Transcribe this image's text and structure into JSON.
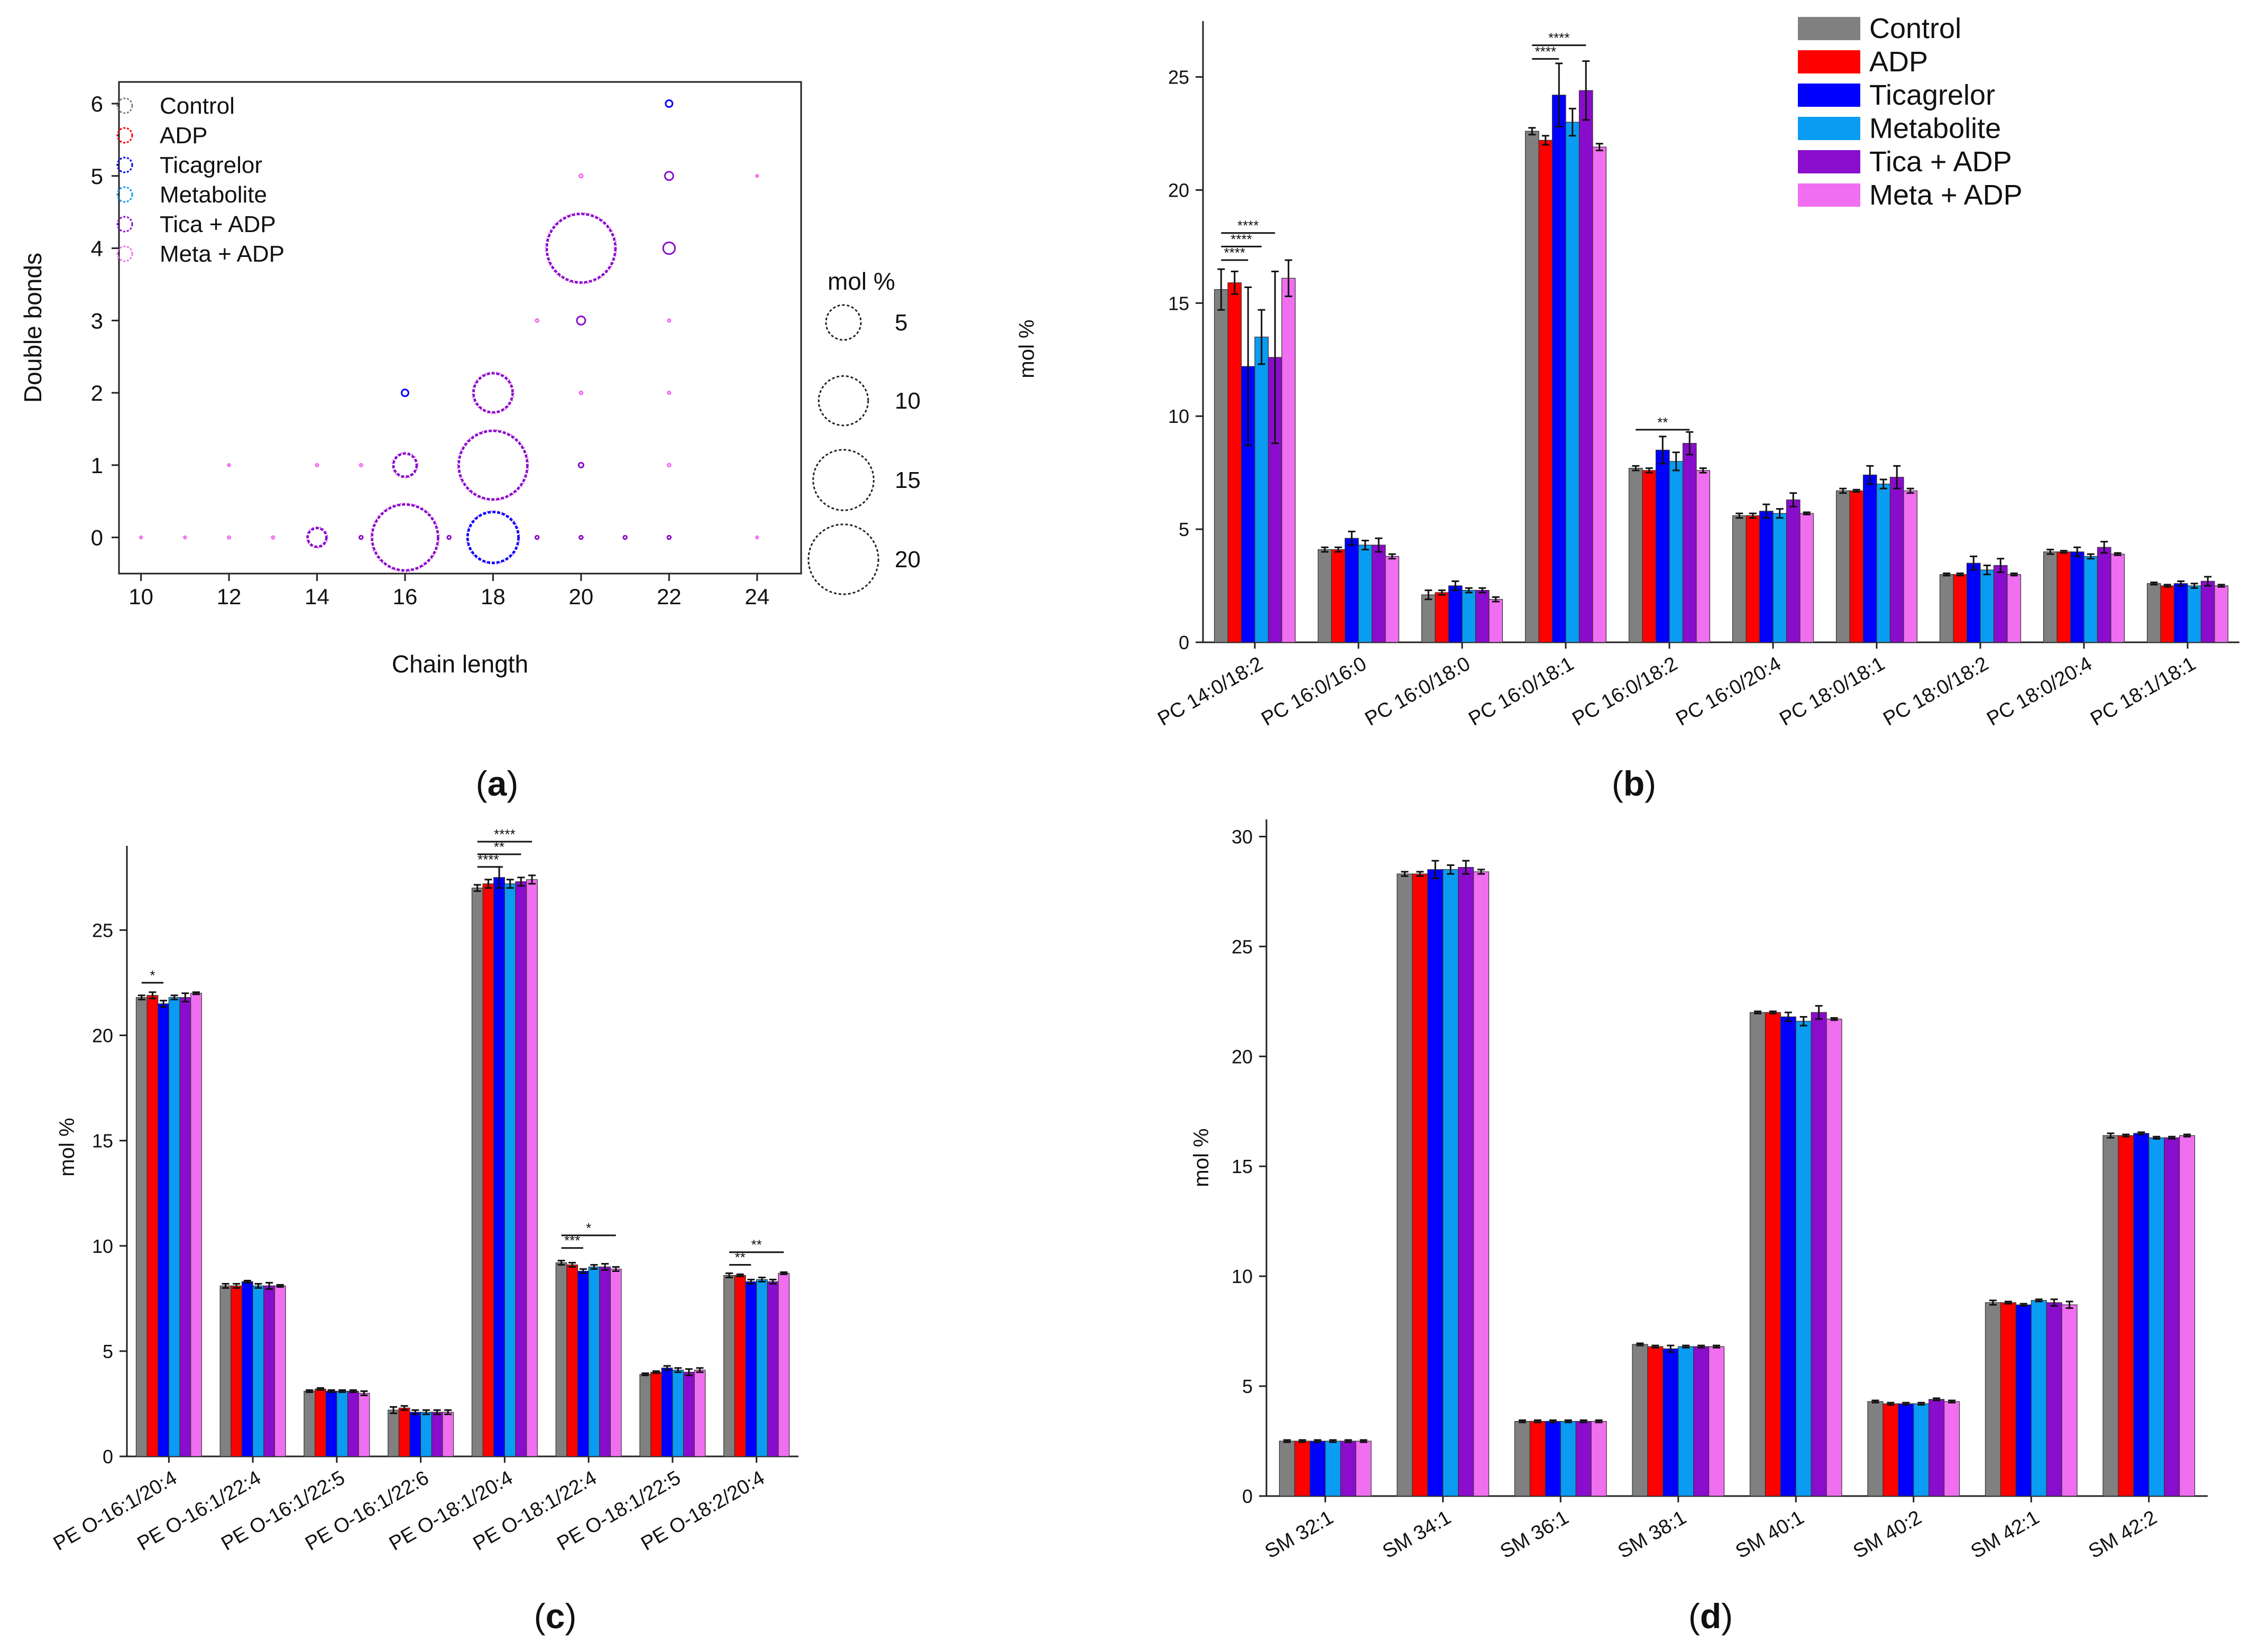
{
  "figure": {
    "series_names": [
      "Control",
      "ADP",
      "Ticagrelor",
      "Metabolite",
      "Tica + ADP",
      "Meta + ADP"
    ],
    "series_colors": [
      "#808080",
      "#ff0000",
      "#0000ff",
      "#0a9cf2",
      "#8a0ccc",
      "#f06ef0"
    ],
    "panel_letters": [
      "a",
      "b",
      "c",
      "d"
    ]
  },
  "chart_data": [
    {
      "id": "a",
      "type": "scatter",
      "subtype": "bubble",
      "xlabel": "Chain length",
      "ylabel": "Double bonds",
      "xlim": [
        9.5,
        25
      ],
      "ylim": [
        -0.5,
        6.3
      ],
      "xticks": [
        10,
        12,
        14,
        16,
        18,
        20,
        22,
        24
      ],
      "yticks": [
        0,
        1,
        2,
        3,
        4,
        5,
        6
      ],
      "grid": false,
      "legend": "top-left",
      "size_legend": {
        "title": "mol %",
        "values": [
          5,
          10,
          15,
          20
        ]
      },
      "points": [
        {
          "x": 14,
          "y": 0,
          "value": 1.5,
          "series": "Tica + ADP"
        },
        {
          "x": 16,
          "y": 0,
          "value": 18.5,
          "series": "Tica + ADP"
        },
        {
          "x": 18,
          "y": 0,
          "value": 11,
          "series": "Ticagrelor"
        },
        {
          "x": 16,
          "y": 1,
          "value": 2.3,
          "series": "Tica + ADP"
        },
        {
          "x": 18,
          "y": 1,
          "value": 20,
          "series": "Tica + ADP"
        },
        {
          "x": 16,
          "y": 2,
          "value": 0.2,
          "series": "Ticagrelor"
        },
        {
          "x": 18,
          "y": 2,
          "value": 6.5,
          "series": "Tica + ADP"
        },
        {
          "x": 20,
          "y": 3,
          "value": 0.3,
          "series": "Tica + ADP"
        },
        {
          "x": 20,
          "y": 4,
          "value": 20,
          "series": "Tica + ADP"
        },
        {
          "x": 22,
          "y": 4,
          "value": 0.6,
          "series": "Tica + ADP"
        },
        {
          "x": 22,
          "y": 5,
          "value": 0.3,
          "series": "Tica + ADP"
        },
        {
          "x": 22,
          "y": 6,
          "value": 0.2,
          "series": "Ticagrelor"
        },
        {
          "x": 10,
          "y": 0,
          "value": 0.02,
          "series": "Meta + ADP"
        },
        {
          "x": 11,
          "y": 0,
          "value": 0.02,
          "series": "Meta + ADP"
        },
        {
          "x": 12,
          "y": 0,
          "value": 0.03,
          "series": "Meta + ADP"
        },
        {
          "x": 13,
          "y": 0,
          "value": 0.03,
          "series": "Meta + ADP"
        },
        {
          "x": 15,
          "y": 0,
          "value": 0.05,
          "series": "Tica + ADP"
        },
        {
          "x": 17,
          "y": 0,
          "value": 0.05,
          "series": "Tica + ADP"
        },
        {
          "x": 19,
          "y": 0,
          "value": 0.05,
          "series": "Tica + ADP"
        },
        {
          "x": 20,
          "y": 0,
          "value": 0.05,
          "series": "Tica + ADP"
        },
        {
          "x": 21,
          "y": 0,
          "value": 0.05,
          "series": "Tica + ADP"
        },
        {
          "x": 22,
          "y": 0,
          "value": 0.05,
          "series": "Tica + ADP"
        },
        {
          "x": 24,
          "y": 0,
          "value": 0.02,
          "series": "Meta + ADP"
        },
        {
          "x": 12,
          "y": 1,
          "value": 0.02,
          "series": "Meta + ADP"
        },
        {
          "x": 14,
          "y": 1,
          "value": 0.03,
          "series": "Meta + ADP"
        },
        {
          "x": 15,
          "y": 1,
          "value": 0.03,
          "series": "Meta + ADP"
        },
        {
          "x": 20,
          "y": 1,
          "value": 0.1,
          "series": "Tica + ADP"
        },
        {
          "x": 22,
          "y": 1,
          "value": 0.04,
          "series": "Meta + ADP"
        },
        {
          "x": 20,
          "y": 2,
          "value": 0.04,
          "series": "Meta + ADP"
        },
        {
          "x": 22,
          "y": 2,
          "value": 0.03,
          "series": "Meta + ADP"
        },
        {
          "x": 19,
          "y": 3,
          "value": 0.04,
          "series": "Meta + ADP"
        },
        {
          "x": 22,
          "y": 3,
          "value": 0.03,
          "series": "Meta + ADP"
        },
        {
          "x": 20,
          "y": 5,
          "value": 0.05,
          "series": "Meta + ADP"
        },
        {
          "x": 24,
          "y": 5,
          "value": 0.02,
          "series": "Meta + ADP"
        }
      ]
    },
    {
      "id": "b",
      "type": "bar",
      "ylabel": "mol %",
      "ylim": [
        0,
        27
      ],
      "yticks": [
        0,
        5,
        10,
        15,
        20,
        25
      ],
      "legend": "top-right",
      "categories": [
        "PC 14:0/18:2",
        "PC 16:0/16:0",
        "PC 16:0/18:0",
        "PC 16:0/18:1",
        "PC 16:0/18:2",
        "PC 16:0/20:4",
        "PC 18:0/18:1",
        "PC 18:0/18:2",
        "PC 18:0/20:4",
        "PC 18:1/18:1"
      ],
      "series": [
        {
          "name": "Control",
          "values": [
            15.6,
            4.1,
            2.1,
            22.6,
            7.7,
            5.6,
            6.7,
            3.0,
            4.0,
            2.6
          ],
          "errors": [
            0.9,
            0.1,
            0.2,
            0.15,
            0.1,
            0.1,
            0.1,
            0.05,
            0.1,
            0.05
          ]
        },
        {
          "name": "ADP",
          "values": [
            15.9,
            4.1,
            2.2,
            22.2,
            7.6,
            5.6,
            6.7,
            3.0,
            4.0,
            2.5
          ],
          "errors": [
            0.5,
            0.1,
            0.1,
            0.2,
            0.1,
            0.1,
            0.05,
            0.05,
            0.05,
            0.05
          ]
        },
        {
          "name": "Ticagrelor",
          "values": [
            12.2,
            4.6,
            2.5,
            24.2,
            8.5,
            5.8,
            7.4,
            3.5,
            4.0,
            2.6
          ],
          "errors": [
            3.5,
            0.3,
            0.2,
            1.4,
            0.6,
            0.3,
            0.4,
            0.3,
            0.2,
            0.1
          ]
        },
        {
          "name": "Metabolite",
          "values": [
            13.5,
            4.3,
            2.3,
            23.0,
            8.0,
            5.7,
            7.0,
            3.2,
            3.8,
            2.5
          ],
          "errors": [
            1.2,
            0.2,
            0.1,
            0.6,
            0.4,
            0.2,
            0.2,
            0.2,
            0.1,
            0.1
          ]
        },
        {
          "name": "Tica + ADP",
          "values": [
            12.6,
            4.3,
            2.3,
            24.4,
            8.8,
            6.3,
            7.3,
            3.4,
            4.2,
            2.7
          ],
          "errors": [
            3.8,
            0.3,
            0.1,
            1.3,
            0.5,
            0.3,
            0.5,
            0.3,
            0.25,
            0.2
          ]
        },
        {
          "name": "Meta + ADP",
          "values": [
            16.1,
            3.8,
            1.9,
            21.9,
            7.6,
            5.7,
            6.7,
            3.0,
            3.9,
            2.5
          ],
          "errors": [
            0.8,
            0.1,
            0.1,
            0.15,
            0.1,
            0.05,
            0.1,
            0.05,
            0.05,
            0.05
          ]
        }
      ],
      "significance": [
        {
          "category": 0,
          "from": 0,
          "to": 2,
          "y": 16.9,
          "label": "****"
        },
        {
          "category": 0,
          "from": 0,
          "to": 3,
          "y": 17.5,
          "label": "****"
        },
        {
          "category": 0,
          "from": 0,
          "to": 4,
          "y": 18.1,
          "label": "****"
        },
        {
          "category": 3,
          "from": 0,
          "to": 2,
          "y": 25.8,
          "label": "****"
        },
        {
          "category": 3,
          "from": 0,
          "to": 4,
          "y": 26.4,
          "label": "****"
        },
        {
          "category": 4,
          "from": 0,
          "to": 4,
          "y": 9.4,
          "label": "**"
        }
      ]
    },
    {
      "id": "c",
      "type": "bar",
      "ylabel": "mol %",
      "ylim": [
        0,
        28.5
      ],
      "yticks": [
        0,
        5,
        10,
        15,
        20,
        25
      ],
      "categories": [
        "PE O-16:1/20:4",
        "PE O-16:1/22:4",
        "PE O-16:1/22:5",
        "PE O-16:1/22:6",
        "PE O-18:1/20:4",
        "PE O-18:1/22:4",
        "PE O-18:1/22:5",
        "PE O-18:2/20:4"
      ],
      "series": [
        {
          "name": "Control",
          "values": [
            21.8,
            8.1,
            3.1,
            2.2,
            27.0,
            9.2,
            3.9,
            8.6
          ],
          "errors": [
            0.1,
            0.1,
            0.05,
            0.15,
            0.15,
            0.1,
            0.05,
            0.1
          ]
        },
        {
          "name": "ADP",
          "values": [
            21.9,
            8.1,
            3.2,
            2.3,
            27.2,
            9.1,
            4.0,
            8.6
          ],
          "errors": [
            0.15,
            0.1,
            0.05,
            0.1,
            0.2,
            0.1,
            0.05,
            0.05
          ]
        },
        {
          "name": "Ticagrelor",
          "values": [
            21.5,
            8.3,
            3.1,
            2.1,
            27.5,
            8.8,
            4.2,
            8.3
          ],
          "errors": [
            0.15,
            0.05,
            0.05,
            0.1,
            0.5,
            0.1,
            0.1,
            0.1
          ]
        },
        {
          "name": "Metabolite",
          "values": [
            21.8,
            8.1,
            3.1,
            2.1,
            27.2,
            9.0,
            4.1,
            8.4
          ],
          "errors": [
            0.1,
            0.1,
            0.05,
            0.1,
            0.2,
            0.1,
            0.1,
            0.1
          ]
        },
        {
          "name": "Tica + ADP",
          "values": [
            21.8,
            8.1,
            3.1,
            2.1,
            27.3,
            9.0,
            4.0,
            8.3
          ],
          "errors": [
            0.2,
            0.15,
            0.05,
            0.1,
            0.2,
            0.15,
            0.15,
            0.1
          ]
        },
        {
          "name": "Meta + ADP",
          "values": [
            22.0,
            8.1,
            3.0,
            2.1,
            27.4,
            8.9,
            4.1,
            8.7
          ],
          "errors": [
            0.05,
            0.05,
            0.1,
            0.1,
            0.2,
            0.1,
            0.1,
            0.05
          ]
        }
      ],
      "significance": [
        {
          "category": 0,
          "from": 0,
          "to": 2,
          "y": 22.5,
          "label": "*"
        },
        {
          "category": 4,
          "from": 0,
          "to": 2,
          "y": 28.0,
          "label": "****"
        },
        {
          "category": 4,
          "from": 0,
          "to": 4,
          "y": 28.6,
          "label": "**"
        },
        {
          "category": 4,
          "from": 0,
          "to": 5,
          "y": 29.2,
          "label": "****"
        },
        {
          "category": 5,
          "from": 0,
          "to": 2,
          "y": 9.9,
          "label": "***"
        },
        {
          "category": 5,
          "from": 0,
          "to": 5,
          "y": 10.5,
          "label": "*"
        },
        {
          "category": 7,
          "from": 0,
          "to": 2,
          "y": 9.1,
          "label": "**"
        },
        {
          "category": 7,
          "from": 0,
          "to": 5,
          "y": 9.7,
          "label": "**"
        }
      ]
    },
    {
      "id": "d",
      "type": "bar",
      "ylabel": "mol %",
      "ylim": [
        0,
        30.3
      ],
      "yticks": [
        0,
        5,
        10,
        15,
        20,
        25,
        30
      ],
      "categories": [
        "SM 32:1",
        "SM 34:1",
        "SM 36:1",
        "SM 38:1",
        "SM 40:1",
        "SM 40:2",
        "SM 42:1",
        "SM 42:2"
      ],
      "series": [
        {
          "name": "Control",
          "values": [
            2.5,
            28.3,
            3.4,
            6.9,
            22.0,
            4.3,
            8.8,
            16.4
          ],
          "errors": [
            0.05,
            0.1,
            0.05,
            0.05,
            0.05,
            0.05,
            0.1,
            0.1
          ]
        },
        {
          "name": "ADP",
          "values": [
            2.5,
            28.3,
            3.4,
            6.8,
            22.0,
            4.2,
            8.8,
            16.4
          ],
          "errors": [
            0.05,
            0.1,
            0.05,
            0.05,
            0.05,
            0.05,
            0.05,
            0.05
          ]
        },
        {
          "name": "Ticagrelor",
          "values": [
            2.5,
            28.5,
            3.4,
            6.7,
            21.8,
            4.2,
            8.7,
            16.5
          ],
          "errors": [
            0.05,
            0.4,
            0.05,
            0.15,
            0.2,
            0.05,
            0.05,
            0.05
          ]
        },
        {
          "name": "Metabolite",
          "values": [
            2.5,
            28.5,
            3.4,
            6.8,
            21.6,
            4.2,
            8.9,
            16.3
          ],
          "errors": [
            0.05,
            0.2,
            0.05,
            0.05,
            0.2,
            0.05,
            0.05,
            0.05
          ]
        },
        {
          "name": "Tica + ADP",
          "values": [
            2.5,
            28.6,
            3.4,
            6.8,
            22.0,
            4.4,
            8.8,
            16.3
          ],
          "errors": [
            0.05,
            0.3,
            0.05,
            0.05,
            0.3,
            0.05,
            0.15,
            0.05
          ]
        },
        {
          "name": "Meta + ADP",
          "values": [
            2.5,
            28.4,
            3.4,
            6.8,
            21.7,
            4.3,
            8.7,
            16.4
          ],
          "errors": [
            0.05,
            0.1,
            0.05,
            0.05,
            0.05,
            0.05,
            0.15,
            0.05
          ]
        }
      ]
    }
  ]
}
